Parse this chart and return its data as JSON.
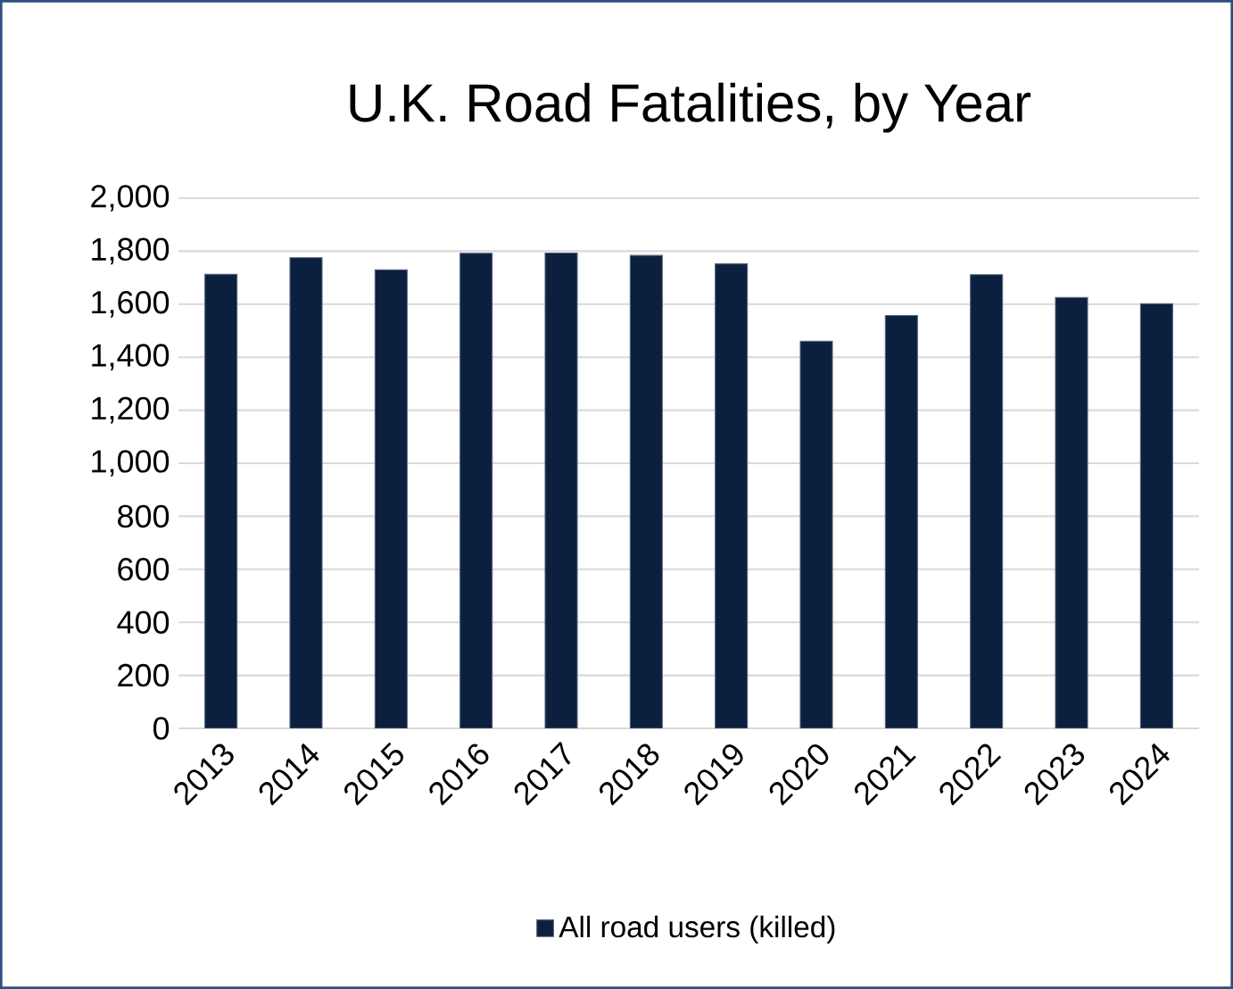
{
  "chart_data": {
    "type": "bar",
    "title": "U.K. Road Fatalities, by Year",
    "categories": [
      "2013",
      "2014",
      "2015",
      "2016",
      "2017",
      "2018",
      "2019",
      "2020",
      "2021",
      "2022",
      "2023",
      "2024"
    ],
    "series": [
      {
        "name": "All road users (killed)",
        "color": "#0b1f3f",
        "values": [
          1713,
          1775,
          1730,
          1792,
          1793,
          1784,
          1752,
          1460,
          1557,
          1711,
          1625,
          1602
        ]
      }
    ],
    "ylim": [
      0,
      2000
    ],
    "yticks": [
      0,
      200,
      400,
      600,
      800,
      {
        "value": 1000,
        "label": "1,000"
      },
      {
        "value": 1200,
        "label": "1,200"
      },
      {
        "value": 1400,
        "label": "1,400"
      },
      {
        "value": 1600,
        "label": "1,600"
      },
      {
        "value": 1800,
        "label": "1,800"
      },
      {
        "value": 2000,
        "label": "2,000"
      }
    ],
    "grid": "y",
    "legend": "bottom"
  }
}
